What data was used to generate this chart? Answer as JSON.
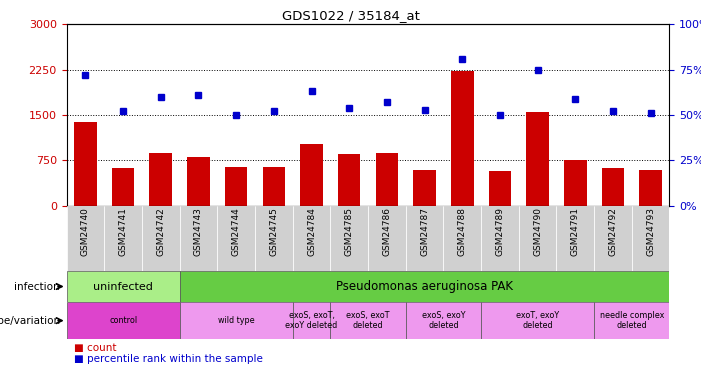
{
  "title": "GDS1022 / 35184_at",
  "samples": [
    "GSM24740",
    "GSM24741",
    "GSM24742",
    "GSM24743",
    "GSM24744",
    "GSM24745",
    "GSM24784",
    "GSM24785",
    "GSM24786",
    "GSM24787",
    "GSM24788",
    "GSM24789",
    "GSM24790",
    "GSM24791",
    "GSM24792",
    "GSM24793"
  ],
  "counts": [
    1380,
    620,
    870,
    800,
    640,
    640,
    1020,
    860,
    870,
    590,
    2220,
    570,
    1550,
    750,
    620,
    590
  ],
  "percentiles": [
    72,
    52,
    60,
    61,
    50,
    52,
    63,
    54,
    57,
    53,
    81,
    50,
    75,
    59,
    52,
    51
  ],
  "ylim_left": [
    0,
    3000
  ],
  "ylim_right": [
    0,
    100
  ],
  "yticks_left": [
    0,
    750,
    1500,
    2250,
    3000
  ],
  "yticks_right": [
    0,
    25,
    50,
    75,
    100
  ],
  "bar_color": "#cc0000",
  "dot_color": "#0000cc",
  "xtick_bg": "#d0d0d0",
  "infection_uninf_color": "#aaee88",
  "infection_pak_color": "#66cc44",
  "genotype_control_color": "#dd44cc",
  "genotype_other_color": "#ee99ee",
  "infection_label": "infection",
  "genotype_label": "genotype/variation",
  "legend_count": "count",
  "legend_pct": "percentile rank within the sample",
  "ylabel_left_color": "#cc0000",
  "ylabel_right_color": "#0000cc",
  "geno_blocks": [
    [
      0,
      3,
      "#dd44cc",
      "control"
    ],
    [
      3,
      6,
      "#ee99ee",
      "wild type"
    ],
    [
      6,
      7,
      "#ee99ee",
      "exoS, exoT,\nexoY deleted"
    ],
    [
      7,
      9,
      "#ee99ee",
      "exoS, exoT\ndeleted"
    ],
    [
      9,
      11,
      "#ee99ee",
      "exoS, exoY\ndeleted"
    ],
    [
      11,
      14,
      "#ee99ee",
      "exoT, exoY\ndeleted"
    ],
    [
      14,
      16,
      "#ee99ee",
      "needle complex\ndeleted"
    ]
  ]
}
